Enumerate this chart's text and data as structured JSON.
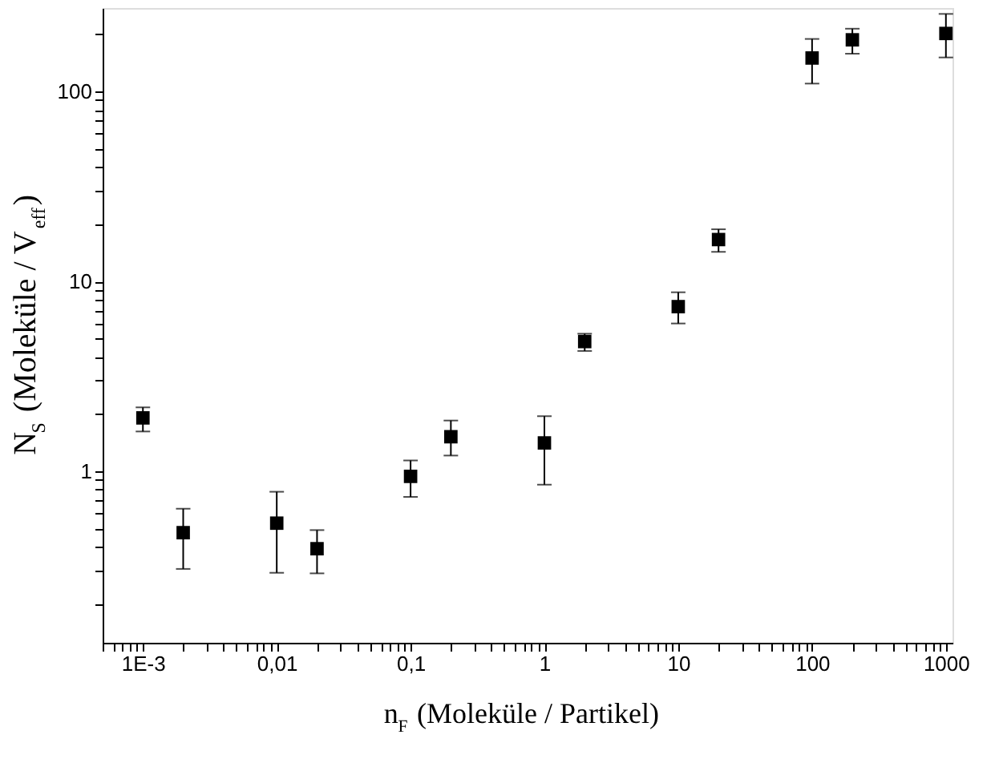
{
  "chart_data": {
    "type": "scatter",
    "xlabel": "n$_{F}$ (Moleküle / Partikel)",
    "ylabel": "N$_{S}$ (Moleküle / V$_{eff}$)",
    "x": [
      0.001,
      0.002,
      0.01,
      0.02,
      0.1,
      0.2,
      1,
      2,
      10,
      20,
      100,
      200,
      1000
    ],
    "series": [
      {
        "color": "#000000",
        "marker": "square",
        "values": [
          1.91,
          0.475,
          0.533,
          0.391,
          0.94,
          1.52,
          1.41,
          4.82,
          7.36,
          16.6,
          150,
          187,
          202
        ],
        "errors": [
          [
            1.62,
            2.17
          ],
          [
            0.306,
            0.635
          ],
          [
            0.292,
            0.78
          ],
          [
            0.29,
            0.49
          ],
          [
            0.733,
            1.14
          ],
          [
            1.21,
            1.85
          ],
          [
            0.85,
            1.95
          ],
          [
            4.3,
            5.3
          ],
          [
            6.0,
            8.76
          ],
          [
            14.3,
            18.8
          ],
          [
            110,
            189
          ],
          [
            158,
            214
          ],
          [
            151,
            256
          ]
        ]
      }
    ],
    "log": "xy",
    "grid": false,
    "xlim": [
      0.0005,
      1120
    ],
    "ylim": [
      0.125,
      275
    ],
    "xticks": [
      {
        "value": 0.0005,
        "label": null
      },
      {
        "value": 0.0006,
        "label": null
      },
      {
        "value": 0.0007,
        "label": null
      },
      {
        "value": 0.0008,
        "label": null
      },
      {
        "value": 0.0009,
        "label": null
      },
      {
        "value": 0.001,
        "label": "1E-3"
      },
      {
        "value": 0.002,
        "label": null
      },
      {
        "value": 0.003,
        "label": null
      },
      {
        "value": 0.004,
        "label": null
      },
      {
        "value": 0.005,
        "label": null
      },
      {
        "value": 0.006,
        "label": null
      },
      {
        "value": 0.007,
        "label": null
      },
      {
        "value": 0.008,
        "label": null
      },
      {
        "value": 0.009,
        "label": null
      },
      {
        "value": 0.01,
        "label": "0,01"
      },
      {
        "value": 0.02,
        "label": null
      },
      {
        "value": 0.03,
        "label": null
      },
      {
        "value": 0.04,
        "label": null
      },
      {
        "value": 0.05,
        "label": null
      },
      {
        "value": 0.06,
        "label": null
      },
      {
        "value": 0.07,
        "label": null
      },
      {
        "value": 0.08,
        "label": null
      },
      {
        "value": 0.09,
        "label": null
      },
      {
        "value": 0.1,
        "label": "0,1"
      },
      {
        "value": 0.2,
        "label": null
      },
      {
        "value": 0.3,
        "label": null
      },
      {
        "value": 0.4,
        "label": null
      },
      {
        "value": 0.5,
        "label": null
      },
      {
        "value": 0.6,
        "label": null
      },
      {
        "value": 0.7,
        "label": null
      },
      {
        "value": 0.8,
        "label": null
      },
      {
        "value": 0.9,
        "label": null
      },
      1,
      {
        "value": 2,
        "label": null
      },
      {
        "value": 3,
        "label": null
      },
      {
        "value": 4,
        "label": null
      },
      {
        "value": 5,
        "label": null
      },
      {
        "value": 6,
        "label": null
      },
      {
        "value": 7,
        "label": null
      },
      {
        "value": 8,
        "label": null
      },
      {
        "value": 9,
        "label": null
      },
      10,
      {
        "value": 20,
        "label": null
      },
      {
        "value": 30,
        "label": null
      },
      {
        "value": 40,
        "label": null
      },
      {
        "value": 50,
        "label": null
      },
      {
        "value": 60,
        "label": null
      },
      {
        "value": 70,
        "label": null
      },
      {
        "value": 80,
        "label": null
      },
      {
        "value": 90,
        "label": null
      },
      100,
      {
        "value": 200,
        "label": null
      },
      {
        "value": 300,
        "label": null
      },
      {
        "value": 400,
        "label": null
      },
      {
        "value": 500,
        "label": null
      },
      {
        "value": 600,
        "label": null
      },
      {
        "value": 700,
        "label": null
      },
      {
        "value": 800,
        "label": null
      },
      {
        "value": 900,
        "label": null
      },
      1000
    ],
    "yticks": [
      {
        "value": 0.2,
        "label": null
      },
      {
        "value": 0.3,
        "label": null
      },
      {
        "value": 0.4,
        "label": null
      },
      {
        "value": 0.5,
        "label": null
      },
      {
        "value": 0.6,
        "label": null
      },
      {
        "value": 0.7,
        "label": null
      },
      {
        "value": 0.8,
        "label": null
      },
      {
        "value": 0.9,
        "label": null
      },
      1,
      {
        "value": 2,
        "label": null
      },
      {
        "value": 3,
        "label": null
      },
      {
        "value": 4,
        "label": null
      },
      {
        "value": 5,
        "label": null
      },
      {
        "value": 6,
        "label": null
      },
      {
        "value": 7,
        "label": null
      },
      {
        "value": 8,
        "label": null
      },
      {
        "value": 9,
        "label": null
      },
      10,
      {
        "value": 20,
        "label": null
      },
      {
        "value": 30,
        "label": null
      },
      {
        "value": 40,
        "label": null
      },
      {
        "value": 50,
        "label": null
      },
      {
        "value": 60,
        "label": null
      },
      {
        "value": 70,
        "label": null
      },
      {
        "value": 80,
        "label": null
      },
      {
        "value": 90,
        "label": null
      },
      100,
      {
        "value": 200,
        "label": null
      }
    ]
  }
}
